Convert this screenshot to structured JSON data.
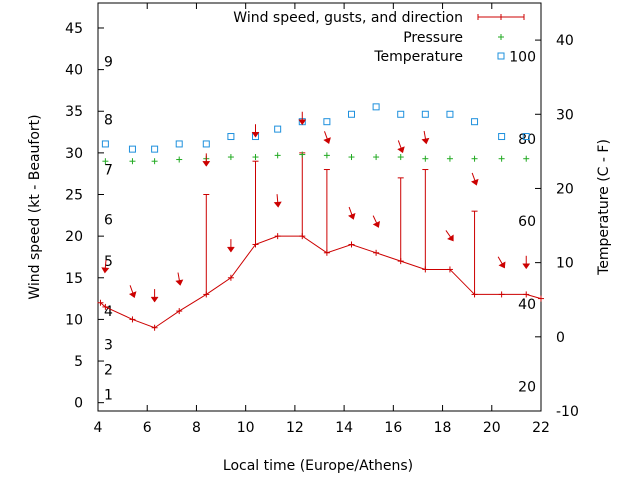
{
  "chart_data": {
    "type": "line",
    "xlabel": "Local time (Europe/Athens)",
    "ylabel_left": "Wind speed (kt - Beaufort)",
    "ylabel_right": "Temperature (C - F)",
    "xlim": [
      4,
      22
    ],
    "ylim_left": [
      -1,
      48
    ],
    "ylim_right": [
      -10,
      45
    ],
    "x_ticks": [
      4,
      6,
      8,
      10,
      12,
      14,
      16,
      18,
      20,
      22
    ],
    "y_ticks_left": [
      0,
      5,
      10,
      15,
      20,
      25,
      30,
      35,
      40,
      45
    ],
    "y_ticks_right": [
      -10,
      0,
      10,
      20,
      30,
      40
    ],
    "beaufort_labels": [
      {
        "label": "1",
        "kt": 1
      },
      {
        "label": "2",
        "kt": 4
      },
      {
        "label": "3",
        "kt": 7
      },
      {
        "label": "4",
        "kt": 11
      },
      {
        "label": "5",
        "kt": 17
      },
      {
        "label": "6",
        "kt": 22
      },
      {
        "label": "7",
        "kt": 28
      },
      {
        "label": "8",
        "kt": 34
      },
      {
        "label": "9",
        "kt": 41
      }
    ],
    "fahrenheit_labels": [
      {
        "label": "20",
        "c": -6.7
      },
      {
        "label": "40",
        "c": 4.4
      },
      {
        "label": "60",
        "c": 15.6
      },
      {
        "label": "80",
        "c": 26.7
      },
      {
        "label": "100",
        "c": 37.8
      }
    ],
    "legend": [
      {
        "name": "Wind speed, gusts, and direction",
        "color": "#cc0000"
      },
      {
        "name": "Pressure",
        "color": "#22aa22"
      },
      {
        "name": "Temperature",
        "color": "#1e90dd"
      }
    ],
    "legend_position": "top-right",
    "grid": false,
    "series": [
      {
        "name": "Wind speed, gusts, and direction",
        "axis": "left",
        "color": "#cc0000",
        "x": [
          4.1,
          4.3,
          5.4,
          6.3,
          7.3,
          8.4,
          9.4,
          10.4,
          11.3,
          12.3,
          13.3,
          14.3,
          15.3,
          16.3,
          17.3,
          18.3,
          19.3,
          20.4,
          21.4,
          22.0
        ],
        "values": [
          12,
          11.5,
          10,
          9,
          11,
          13,
          15,
          19,
          20,
          20,
          18,
          19,
          18,
          17,
          16,
          16,
          13,
          13,
          13,
          12.5
        ],
        "gusts": [
          null,
          null,
          null,
          null,
          null,
          25,
          null,
          29,
          null,
          30,
          28,
          null,
          null,
          27,
          28,
          null,
          23,
          null,
          null,
          null
        ]
      },
      {
        "name": "Pressure",
        "axis": "left",
        "color": "#22aa22",
        "x": [
          4.3,
          5.4,
          6.3,
          7.3,
          8.4,
          9.4,
          10.4,
          11.3,
          12.3,
          13.3,
          14.3,
          15.3,
          16.3,
          17.3,
          18.3,
          19.3,
          20.4,
          21.4
        ],
        "values": [
          29,
          29,
          29,
          29.2,
          29.3,
          29.5,
          29.5,
          29.7,
          29.8,
          29.7,
          29.5,
          29.5,
          29.5,
          29.3,
          29.3,
          29.3,
          29.3,
          29.3
        ]
      },
      {
        "name": "Temperature",
        "axis": "right",
        "color": "#1e90dd",
        "x": [
          4.3,
          5.4,
          6.3,
          7.3,
          8.4,
          9.4,
          10.4,
          11.3,
          12.3,
          13.3,
          14.3,
          15.3,
          16.3,
          17.3,
          18.3,
          19.3,
          20.4,
          21.4
        ],
        "values": [
          26,
          25.3,
          25.3,
          26,
          26,
          27,
          27,
          28,
          29,
          29,
          30,
          31,
          30,
          30,
          30,
          29,
          27,
          27
        ]
      }
    ],
    "wind_direction_arrows": [
      {
        "x": 4.3,
        "kt": 16.3,
        "dir_deg": 5
      },
      {
        "x": 5.4,
        "kt": 13.3,
        "dir_deg": 340
      },
      {
        "x": 6.3,
        "kt": 12.8,
        "dir_deg": 0
      },
      {
        "x": 7.3,
        "kt": 14.8,
        "dir_deg": 350
      },
      {
        "x": 8.4,
        "kt": 29.1,
        "dir_deg": 0
      },
      {
        "x": 9.4,
        "kt": 18.8,
        "dir_deg": 0
      },
      {
        "x": 10.4,
        "kt": 32.6,
        "dir_deg": 0
      },
      {
        "x": 11.3,
        "kt": 24.2,
        "dir_deg": 355
      },
      {
        "x": 12.3,
        "kt": 34.1,
        "dir_deg": 0
      },
      {
        "x": 13.3,
        "kt": 31.8,
        "dir_deg": 340
      },
      {
        "x": 14.3,
        "kt": 22.7,
        "dir_deg": 340
      },
      {
        "x": 15.3,
        "kt": 21.7,
        "dir_deg": 335
      },
      {
        "x": 16.3,
        "kt": 30.7,
        "dir_deg": 340
      },
      {
        "x": 17.3,
        "kt": 31.8,
        "dir_deg": 350
      },
      {
        "x": 18.3,
        "kt": 20,
        "dir_deg": 325
      },
      {
        "x": 19.3,
        "kt": 26.8,
        "dir_deg": 340
      },
      {
        "x": 20.4,
        "kt": 16.8,
        "dir_deg": 330
      },
      {
        "x": 21.4,
        "kt": 16.8,
        "dir_deg": 0
      }
    ]
  }
}
